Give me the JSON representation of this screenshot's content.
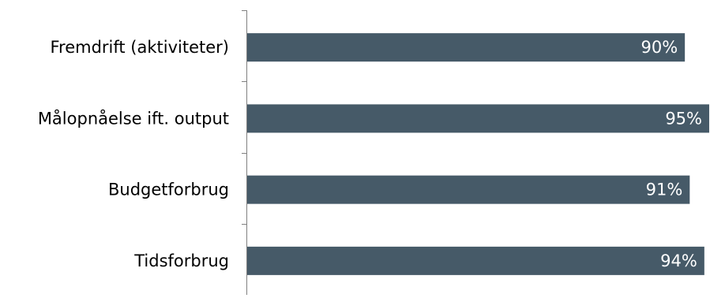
{
  "chart_data": {
    "type": "bar",
    "orientation": "horizontal",
    "categories": [
      "Fremdrift (aktiviteter)",
      "Målopnåelse ift. output",
      "Budgetforbrug",
      "Tidsforbrug"
    ],
    "values": [
      90,
      95,
      91,
      94
    ],
    "data_labels": [
      "90%",
      "95%",
      "91%",
      "94%"
    ],
    "title": "",
    "xlabel": "",
    "ylabel": "",
    "xlim": [
      0,
      95
    ],
    "grid": false,
    "legend": "none",
    "bar_color": "#465a68",
    "label_color": "#ffffff",
    "axis_color": "#808080"
  }
}
